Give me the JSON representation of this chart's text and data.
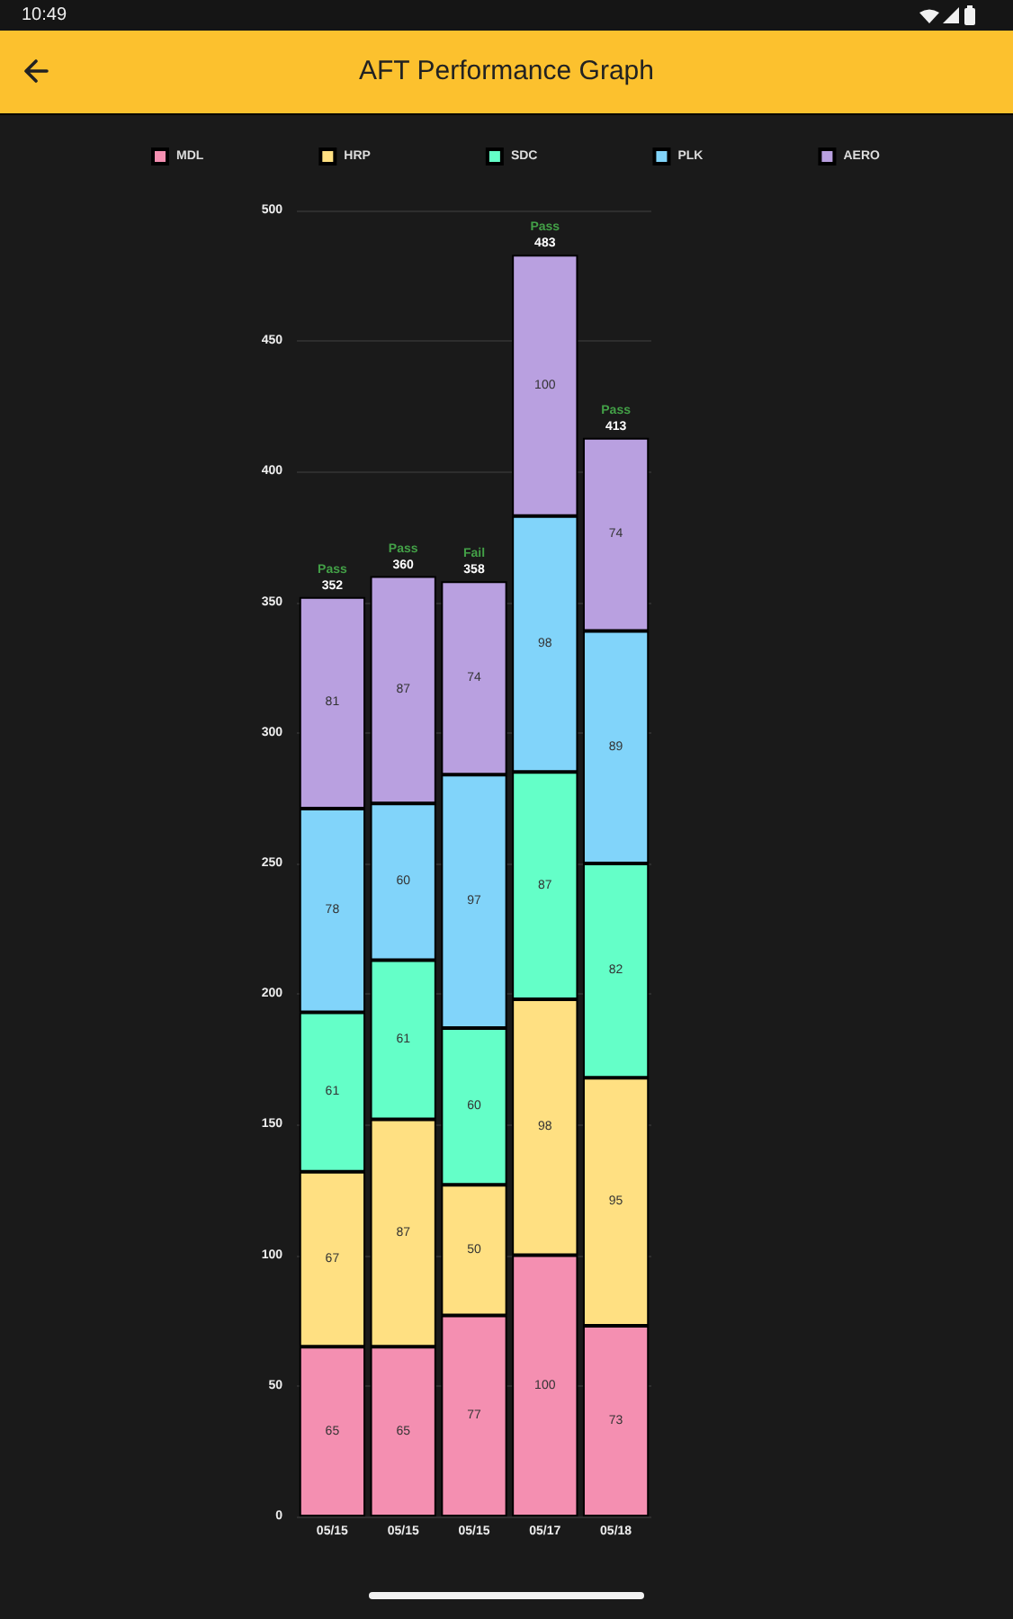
{
  "chart_data": {
    "type": "bar",
    "title": "AFT Performance Graph",
    "categories": [
      "05/15",
      "05/15",
      "05/15",
      "05/17",
      "05/18"
    ],
    "series": [
      {
        "name": "MDL",
        "color": "#f48fb1",
        "values": [
          65,
          65,
          77,
          100,
          73
        ]
      },
      {
        "name": "HRP",
        "color": "#ffe082",
        "values": [
          67,
          87,
          50,
          98,
          95
        ]
      },
      {
        "name": "SDC",
        "color": "#64ffc8",
        "values": [
          61,
          61,
          60,
          87,
          82
        ]
      },
      {
        "name": "PLK",
        "color": "#81d4fa",
        "values": [
          78,
          60,
          97,
          98,
          89
        ]
      },
      {
        "name": "AERO",
        "color": "#b9a0e0",
        "values": [
          81,
          87,
          74,
          100,
          74
        ]
      }
    ],
    "stacked": true,
    "data_labels": true,
    "totals": [
      "352",
      "360",
      "358",
      "483",
      "413"
    ],
    "ylim": [
      0,
      500
    ],
    "yticks": [
      0,
      50,
      100,
      150,
      200,
      250,
      300,
      350,
      400,
      450,
      500
    ],
    "grid": "y",
    "legend": "top",
    "annotations": [
      "10:49",
      {
        "text": "Pass",
        "x": "05/15",
        "y": 352
      },
      {
        "text": "Pass",
        "y": 360
      },
      {
        "text": "Fail",
        "y": 358
      },
      {
        "text": "Pass",
        "x": "05/17",
        "y": 483
      },
      {
        "text": "Pass",
        "x": "05/18",
        "y": 413
      }
    ]
  }
}
